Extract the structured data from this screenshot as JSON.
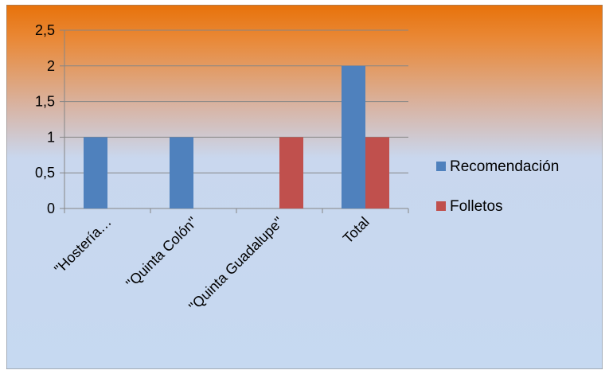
{
  "chart_data": {
    "type": "bar",
    "title": "",
    "xlabel": "",
    "ylabel": "",
    "categories": [
      "\"Hostería…",
      "\"Quinta Colón\"",
      "\"Quinta Guadalupe\"",
      "Total"
    ],
    "series": [
      {
        "name": "Recomendación",
        "color": "#4F81BD",
        "values": [
          1,
          1,
          0,
          2
        ]
      },
      {
        "name": "Folletos",
        "color": "#C0504D",
        "values": [
          0,
          0,
          1,
          1
        ]
      }
    ],
    "ylim": [
      0,
      2.5
    ],
    "yticks": [
      "0",
      "0,5",
      "1",
      "1,5",
      "2",
      "2,5"
    ],
    "ytick_values": [
      0,
      0.5,
      1,
      1.5,
      2,
      2.5
    ],
    "grid": true,
    "legend": "right",
    "colors": {
      "background_top": "#E36C0A",
      "background_bottom": "#C6D9F1",
      "gridline": "#868686",
      "text": "#000000"
    }
  }
}
